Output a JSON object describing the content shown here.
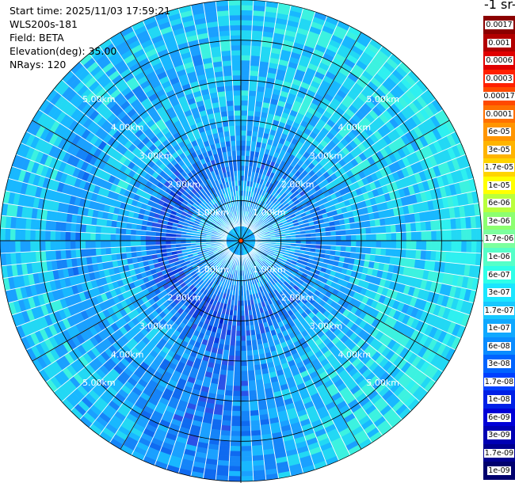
{
  "info": {
    "start_time": "Start time: 2025/11/03 17:59:21",
    "instrument": "WLS200s-181",
    "field": "Field: BETA",
    "elevation": "Elevation(deg): 35.00",
    "nrays": "NRays: 120"
  },
  "colorbar": {
    "title": "-1 sr-",
    "labels": [
      "0.0017",
      "0.001",
      "0.0006",
      "0.0003",
      "0.00017",
      "0.0001",
      "6e-05",
      "3e-05",
      "1.7e-05",
      "1e-05",
      "6e-06",
      "3e-06",
      "1.7e-06",
      "1e-06",
      "6e-07",
      "3e-07",
      "1.7e-07",
      "1e-07",
      "6e-08",
      "3e-08",
      "1.7e-08",
      "1e-08",
      "6e-09",
      "3e-09",
      "1.7e-09",
      "1e-09"
    ],
    "colors": [
      "#8b0000",
      "#b20000",
      "#e00000",
      "#ff2000",
      "#ff4a00",
      "#ff7000",
      "#ff9500",
      "#ffb400",
      "#ffd400",
      "#ffff00",
      "#b9ff3c",
      "#8cff70",
      "#7cff9e",
      "#55ffc8",
      "#2effe8",
      "#1ae6ff",
      "#16c8ff",
      "#10a8ff",
      "#0a8cff",
      "#0064ff",
      "#0040ff",
      "#0020e6",
      "#0000d8",
      "#0000b4",
      "#000090",
      "#00006e"
    ]
  },
  "chart_data": {
    "type": "heatmap",
    "title": "",
    "projection": "polar PPI",
    "field": "BETA",
    "elevation_deg": 35.0,
    "n_rays": 120,
    "range_rings_km": [
      1,
      2,
      3,
      4,
      5
    ],
    "range_ring_labels": [
      "1.00km",
      "2.00km",
      "3.00km",
      "4.00km",
      "5.00km"
    ],
    "max_range_km": 6.0,
    "color_scale": "log",
    "value_range": [
      1e-09,
      0.0017
    ],
    "dominant_values": [
      "1e-07",
      "3e-07",
      "3e-08"
    ],
    "ring_label_visibility": [
      [
        "1.00km",
        "1.00km",
        "1.00km",
        "1.00km"
      ],
      [
        "2.00km",
        "2.00km",
        "2.00km",
        "2.00km"
      ],
      [
        "3.00km",
        "3.00km",
        "3.00km",
        "3.00km"
      ],
      [
        "4.00km",
        "4.00km",
        "4.00km",
        "4.00km"
      ],
      [
        "5.00km",
        "5.00km",
        "5.00km",
        "5.00km"
      ]
    ]
  }
}
